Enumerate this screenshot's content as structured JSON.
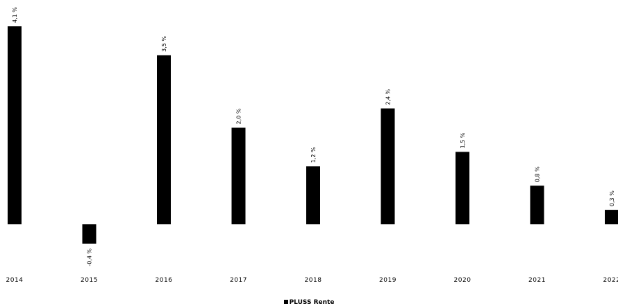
{
  "chart_data": {
    "type": "bar",
    "categories": [
      "2014",
      "2015",
      "2016",
      "2017",
      "2018",
      "2019",
      "2020",
      "2021",
      "2022"
    ],
    "series": [
      {
        "name": "PLUSS Rente",
        "values": [
          4.1,
          -0.4,
          3.5,
          2.0,
          1.2,
          2.4,
          1.5,
          0.8,
          0.3
        ],
        "labels": [
          "4,1 %",
          "-0,4 %",
          "3,5 %",
          "2,0 %",
          "1,2 %",
          "2,4 %",
          "1,5 %",
          "0,8 %",
          "0,3 %"
        ],
        "color": "#000000"
      }
    ],
    "legend": {
      "position": "bottom"
    },
    "grid": false
  }
}
